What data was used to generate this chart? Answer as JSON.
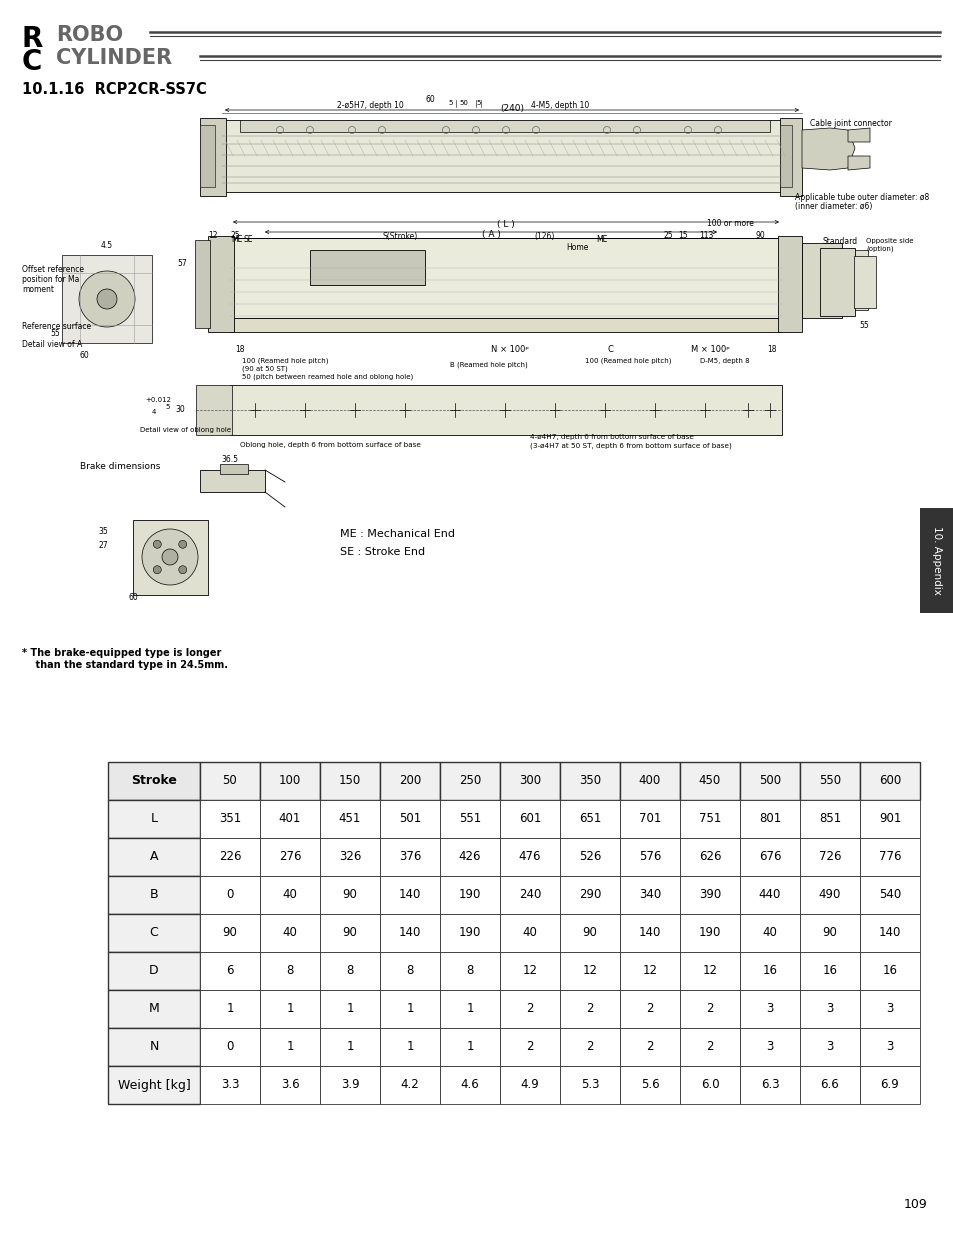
{
  "title": "10.1.16  RCP2CR-SS7C",
  "page_number": "109",
  "table_headers": [
    "Stroke",
    "50",
    "100",
    "150",
    "200",
    "250",
    "300",
    "350",
    "400",
    "450",
    "500",
    "550",
    "600"
  ],
  "table_rows": [
    [
      "L",
      "351",
      "401",
      "451",
      "501",
      "551",
      "601",
      "651",
      "701",
      "751",
      "801",
      "851",
      "901"
    ],
    [
      "A",
      "226",
      "276",
      "326",
      "376",
      "426",
      "476",
      "526",
      "576",
      "626",
      "676",
      "726",
      "776"
    ],
    [
      "B",
      "0",
      "40",
      "90",
      "140",
      "190",
      "240",
      "290",
      "340",
      "390",
      "440",
      "490",
      "540"
    ],
    [
      "C",
      "90",
      "40",
      "90",
      "140",
      "190",
      "40",
      "90",
      "140",
      "190",
      "40",
      "90",
      "140"
    ],
    [
      "D",
      "6",
      "8",
      "8",
      "8",
      "8",
      "12",
      "12",
      "12",
      "12",
      "16",
      "16",
      "16"
    ],
    [
      "M",
      "1",
      "1",
      "1",
      "1",
      "1",
      "2",
      "2",
      "2",
      "2",
      "3",
      "3",
      "3"
    ],
    [
      "N",
      "0",
      "1",
      "1",
      "1",
      "1",
      "2",
      "2",
      "2",
      "2",
      "3",
      "3",
      "3"
    ],
    [
      "Weight [kg]",
      "3.3",
      "3.6",
      "3.9",
      "4.2",
      "4.6",
      "4.9",
      "5.3",
      "5.6",
      "6.0",
      "6.3",
      "6.6",
      "6.9"
    ]
  ],
  "bg_color": "#ffffff",
  "tab_color": "#333333",
  "tab_text": "10. Appendix",
  "me_label": "ME : Mechanical End",
  "se_label": "SE : Stroke End",
  "brake_note1": "* The brake-equipped type is longer",
  "brake_note2": "    than the standard type in 24.5mm."
}
